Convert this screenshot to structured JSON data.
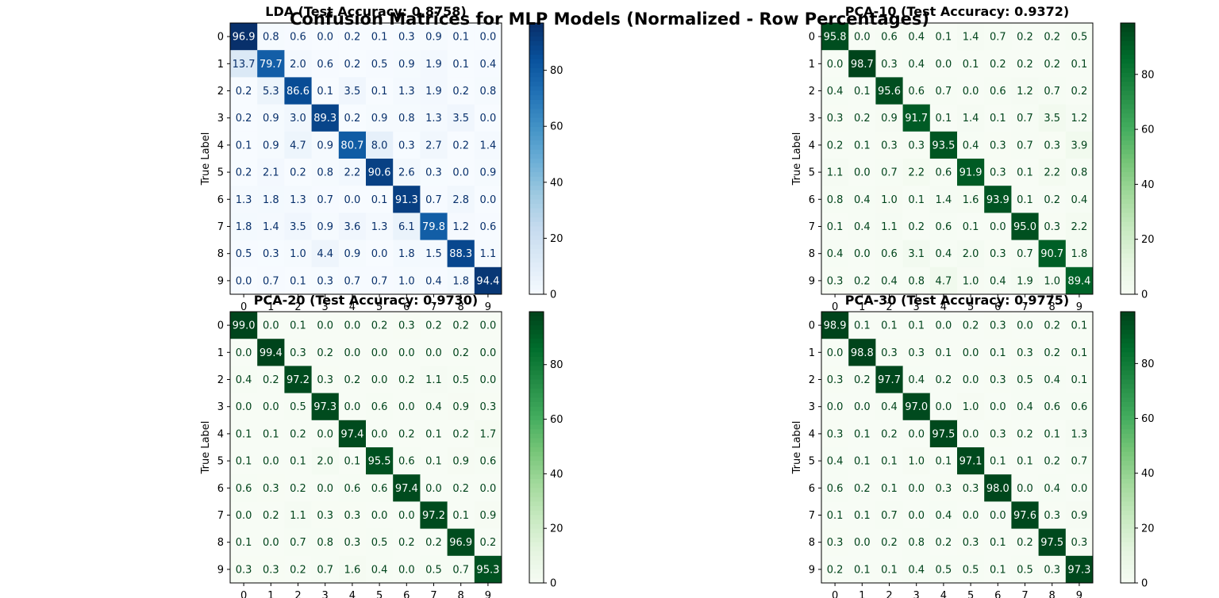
{
  "figure": {
    "title": "Confusion Matrices for MLP Models (Normalized - Row Percentages)"
  },
  "chart_data": [
    {
      "type": "heatmap",
      "title": "LDA (Test Accuracy: 0.8758)",
      "ylabel": "True Label",
      "xlabel": "",
      "colormap": "Blues",
      "colors": {
        "low": "#f7fbff",
        "high": "#08306b"
      },
      "x_ticks": [
        "0",
        "1",
        "2",
        "3",
        "4",
        "5",
        "6",
        "7",
        "8",
        "9"
      ],
      "y_ticks": [
        "0",
        "1",
        "2",
        "3",
        "4",
        "5",
        "6",
        "7",
        "8",
        "9"
      ],
      "colorbar": {
        "ticks": [
          "0",
          "20",
          "40",
          "60",
          "80"
        ],
        "range": [
          0,
          96.9
        ]
      },
      "matrix": [
        [
          96.9,
          0.8,
          0.6,
          0.0,
          0.2,
          0.1,
          0.3,
          0.9,
          0.1,
          0.0
        ],
        [
          13.7,
          79.7,
          2.0,
          0.6,
          0.2,
          0.5,
          0.9,
          1.9,
          0.1,
          0.4
        ],
        [
          0.2,
          5.3,
          86.6,
          0.1,
          3.5,
          0.1,
          1.3,
          1.9,
          0.2,
          0.8
        ],
        [
          0.2,
          0.9,
          3.0,
          89.3,
          0.2,
          0.9,
          0.8,
          1.3,
          3.5,
          0.0
        ],
        [
          0.1,
          0.9,
          4.7,
          0.9,
          80.7,
          8.0,
          0.3,
          2.7,
          0.2,
          1.4
        ],
        [
          0.2,
          2.1,
          0.2,
          0.8,
          2.2,
          90.6,
          2.6,
          0.3,
          0.0,
          0.9
        ],
        [
          1.3,
          1.8,
          1.3,
          0.7,
          0.0,
          0.1,
          91.3,
          0.7,
          2.8,
          0.0
        ],
        [
          1.8,
          1.4,
          3.5,
          0.9,
          3.6,
          1.3,
          6.1,
          79.8,
          1.2,
          0.6
        ],
        [
          0.5,
          0.3,
          1.0,
          4.4,
          0.9,
          0.0,
          1.8,
          1.5,
          88.3,
          1.1
        ],
        [
          0.0,
          0.7,
          0.1,
          0.3,
          0.7,
          0.7,
          1.0,
          0.4,
          1.8,
          94.4
        ]
      ]
    },
    {
      "type": "heatmap",
      "title": "PCA-10 (Test Accuracy: 0.9372)",
      "ylabel": "True Label",
      "xlabel": "",
      "colormap": "Greens",
      "colors": {
        "low": "#f7fcf5",
        "high": "#00441b"
      },
      "x_ticks": [
        "0",
        "1",
        "2",
        "3",
        "4",
        "5",
        "6",
        "7",
        "8",
        "9"
      ],
      "y_ticks": [
        "0",
        "1",
        "2",
        "3",
        "4",
        "5",
        "6",
        "7",
        "8",
        "9"
      ],
      "colorbar": {
        "ticks": [
          "0",
          "20",
          "40",
          "60",
          "80"
        ],
        "range": [
          0,
          98.7
        ]
      },
      "matrix": [
        [
          95.8,
          0.0,
          0.6,
          0.4,
          0.1,
          1.4,
          0.7,
          0.2,
          0.2,
          0.5
        ],
        [
          0.0,
          98.7,
          0.3,
          0.4,
          0.0,
          0.1,
          0.2,
          0.2,
          0.2,
          0.1
        ],
        [
          0.4,
          0.1,
          95.6,
          0.6,
          0.7,
          0.0,
          0.6,
          1.2,
          0.7,
          0.2
        ],
        [
          0.3,
          0.2,
          0.9,
          91.7,
          0.1,
          1.4,
          0.1,
          0.7,
          3.5,
          1.2
        ],
        [
          0.2,
          0.1,
          0.3,
          0.3,
          93.5,
          0.4,
          0.3,
          0.7,
          0.3,
          3.9
        ],
        [
          1.1,
          0.0,
          0.7,
          2.2,
          0.6,
          91.9,
          0.3,
          0.1,
          2.2,
          0.8
        ],
        [
          0.8,
          0.4,
          1.0,
          0.1,
          1.4,
          1.6,
          93.9,
          0.1,
          0.2,
          0.4
        ],
        [
          0.1,
          0.4,
          1.1,
          0.2,
          0.6,
          0.1,
          0.0,
          95.0,
          0.3,
          2.2
        ],
        [
          0.4,
          0.0,
          0.6,
          3.1,
          0.4,
          2.0,
          0.3,
          0.7,
          90.7,
          1.8
        ],
        [
          0.3,
          0.2,
          0.4,
          0.8,
          4.7,
          1.0,
          0.4,
          1.9,
          1.0,
          89.4
        ]
      ]
    },
    {
      "type": "heatmap",
      "title": "PCA-20 (Test Accuracy: 0.9730)",
      "ylabel": "True Label",
      "xlabel": "",
      "colormap": "Greens",
      "colors": {
        "low": "#f7fcf5",
        "high": "#00441b"
      },
      "x_ticks": [
        "0",
        "1",
        "2",
        "3",
        "4",
        "5",
        "6",
        "7",
        "8",
        "9"
      ],
      "y_ticks": [
        "0",
        "1",
        "2",
        "3",
        "4",
        "5",
        "6",
        "7",
        "8",
        "9"
      ],
      "colorbar": {
        "ticks": [
          "0",
          "20",
          "40",
          "60",
          "80"
        ],
        "range": [
          0,
          99.4
        ]
      },
      "matrix": [
        [
          99.0,
          0.0,
          0.1,
          0.0,
          0.0,
          0.2,
          0.3,
          0.2,
          0.2,
          0.0
        ],
        [
          0.0,
          99.4,
          0.3,
          0.2,
          0.0,
          0.0,
          0.0,
          0.0,
          0.2,
          0.0
        ],
        [
          0.4,
          0.2,
          97.2,
          0.3,
          0.2,
          0.0,
          0.2,
          1.1,
          0.5,
          0.0
        ],
        [
          0.0,
          0.0,
          0.5,
          97.3,
          0.0,
          0.6,
          0.0,
          0.4,
          0.9,
          0.3
        ],
        [
          0.1,
          0.1,
          0.2,
          0.0,
          97.4,
          0.0,
          0.2,
          0.1,
          0.2,
          1.7
        ],
        [
          0.1,
          0.0,
          0.1,
          2.0,
          0.1,
          95.5,
          0.6,
          0.1,
          0.9,
          0.6
        ],
        [
          0.6,
          0.3,
          0.2,
          0.0,
          0.6,
          0.6,
          97.4,
          0.0,
          0.2,
          0.0
        ],
        [
          0.0,
          0.2,
          1.1,
          0.3,
          0.3,
          0.0,
          0.0,
          97.2,
          0.1,
          0.9
        ],
        [
          0.1,
          0.0,
          0.7,
          0.8,
          0.3,
          0.5,
          0.2,
          0.2,
          96.9,
          0.2
        ],
        [
          0.3,
          0.3,
          0.2,
          0.7,
          1.6,
          0.4,
          0.0,
          0.5,
          0.7,
          95.3
        ]
      ]
    },
    {
      "type": "heatmap",
      "title": "PCA-30 (Test Accuracy: 0.9775)",
      "ylabel": "True Label",
      "xlabel": "",
      "colormap": "Greens",
      "colors": {
        "low": "#f7fcf5",
        "high": "#00441b"
      },
      "x_ticks": [
        "0",
        "1",
        "2",
        "3",
        "4",
        "5",
        "6",
        "7",
        "8",
        "9"
      ],
      "y_ticks": [
        "0",
        "1",
        "2",
        "3",
        "4",
        "5",
        "6",
        "7",
        "8",
        "9"
      ],
      "colorbar": {
        "ticks": [
          "0",
          "20",
          "40",
          "60",
          "80"
        ],
        "range": [
          0,
          98.9
        ]
      },
      "matrix": [
        [
          98.9,
          0.1,
          0.1,
          0.1,
          0.0,
          0.2,
          0.3,
          0.0,
          0.2,
          0.1
        ],
        [
          0.0,
          98.8,
          0.3,
          0.3,
          0.1,
          0.0,
          0.1,
          0.3,
          0.2,
          0.1
        ],
        [
          0.3,
          0.2,
          97.7,
          0.4,
          0.2,
          0.0,
          0.3,
          0.5,
          0.4,
          0.1
        ],
        [
          0.0,
          0.0,
          0.4,
          97.0,
          0.0,
          1.0,
          0.0,
          0.4,
          0.6,
          0.6
        ],
        [
          0.3,
          0.1,
          0.2,
          0.0,
          97.5,
          0.0,
          0.3,
          0.2,
          0.1,
          1.3
        ],
        [
          0.4,
          0.1,
          0.1,
          1.0,
          0.1,
          97.1,
          0.1,
          0.1,
          0.2,
          0.7
        ],
        [
          0.6,
          0.2,
          0.1,
          0.0,
          0.3,
          0.3,
          98.0,
          0.0,
          0.4,
          0.0
        ],
        [
          0.1,
          0.1,
          0.7,
          0.0,
          0.4,
          0.0,
          0.0,
          97.6,
          0.3,
          0.9
        ],
        [
          0.3,
          0.0,
          0.2,
          0.8,
          0.2,
          0.3,
          0.1,
          0.2,
          97.5,
          0.3
        ],
        [
          0.2,
          0.1,
          0.1,
          0.4,
          0.5,
          0.5,
          0.1,
          0.5,
          0.3,
          97.3
        ]
      ]
    }
  ]
}
